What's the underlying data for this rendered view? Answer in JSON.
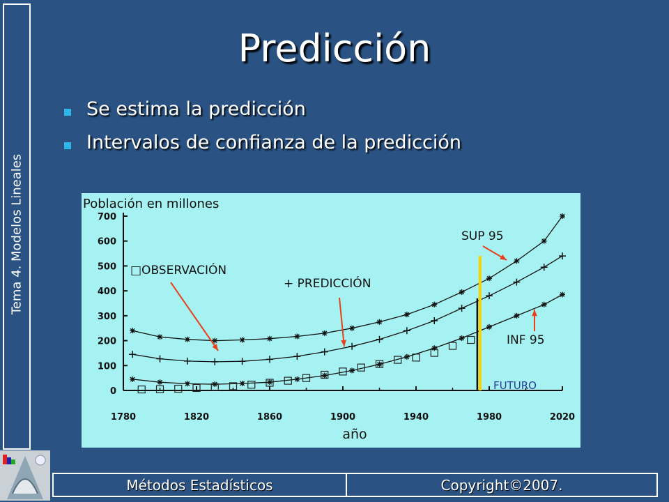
{
  "sidebar": {
    "label": "Tema 4. Modelos Lineales"
  },
  "slide": {
    "title": "Predicción",
    "bullets": [
      "Se estima la predicción",
      "Intervalos de confianza de la predicción"
    ]
  },
  "footer": {
    "left": "Métodos Estadísticos",
    "right": "Copyright©2007."
  },
  "colors": {
    "background": "#2a5384",
    "chart_bg": "#a6f1f1",
    "bullet": "#2fb7ea",
    "arrow": "#e8401c",
    "future_line": "#f5d400"
  },
  "chart_data": {
    "type": "scatter",
    "title": "Población en millones",
    "xlabel": "año",
    "ylabel": "",
    "xlim": [
      1780,
      2020
    ],
    "ylim": [
      0,
      700
    ],
    "x_ticks": [
      "1780",
      "1820",
      "1860",
      "1900",
      "1940",
      "1980",
      "2020"
    ],
    "y_ticks": [
      "700",
      "600",
      "500",
      "400",
      "300",
      "200",
      "100",
      "0"
    ],
    "observations": {
      "name": "OBSERVACIÓN",
      "marker": "□",
      "points": [
        [
          1790,
          4
        ],
        [
          1800,
          5
        ],
        [
          1810,
          7
        ],
        [
          1820,
          10
        ],
        [
          1830,
          13
        ],
        [
          1840,
          17
        ],
        [
          1850,
          23
        ],
        [
          1860,
          31
        ],
        [
          1870,
          39
        ],
        [
          1880,
          50
        ],
        [
          1890,
          63
        ],
        [
          1900,
          76
        ],
        [
          1910,
          92
        ],
        [
          1920,
          106
        ],
        [
          1930,
          123
        ],
        [
          1940,
          132
        ],
        [
          1950,
          151
        ],
        [
          1960,
          179
        ],
        [
          1970,
          203
        ]
      ]
    },
    "series": [
      {
        "name": "SUP 95",
        "marker": "*",
        "x": [
          1785,
          1800,
          1815,
          1830,
          1845,
          1860,
          1875,
          1890,
          1905,
          1920,
          1935,
          1950,
          1965,
          1980,
          1995,
          2010,
          2020
        ],
        "values": [
          240,
          215,
          205,
          200,
          203,
          208,
          217,
          230,
          250,
          275,
          305,
          345,
          395,
          450,
          520,
          600,
          700
        ]
      },
      {
        "name": "PREDICCIÓN",
        "marker": "+",
        "x": [
          1785,
          1800,
          1815,
          1830,
          1845,
          1860,
          1875,
          1890,
          1905,
          1920,
          1935,
          1950,
          1965,
          1980,
          1995,
          2010,
          2020
        ],
        "values": [
          145,
          127,
          118,
          115,
          117,
          125,
          137,
          155,
          177,
          205,
          240,
          280,
          330,
          380,
          435,
          495,
          540
        ]
      },
      {
        "name": "INF 95",
        "marker": "*",
        "x": [
          1785,
          1800,
          1815,
          1830,
          1845,
          1860,
          1875,
          1890,
          1905,
          1920,
          1935,
          1950,
          1965,
          1980,
          1995,
          2010,
          2020
        ],
        "values": [
          45,
          33,
          27,
          25,
          28,
          33,
          45,
          60,
          80,
          105,
          135,
          170,
          210,
          255,
          300,
          345,
          385
        ]
      }
    ],
    "annotations": [
      "SUP 95",
      "+ PREDICCIÓN",
      "□OBSERVACIÓN",
      "INF 95",
      "FUTURO"
    ],
    "future_start": 1975
  }
}
